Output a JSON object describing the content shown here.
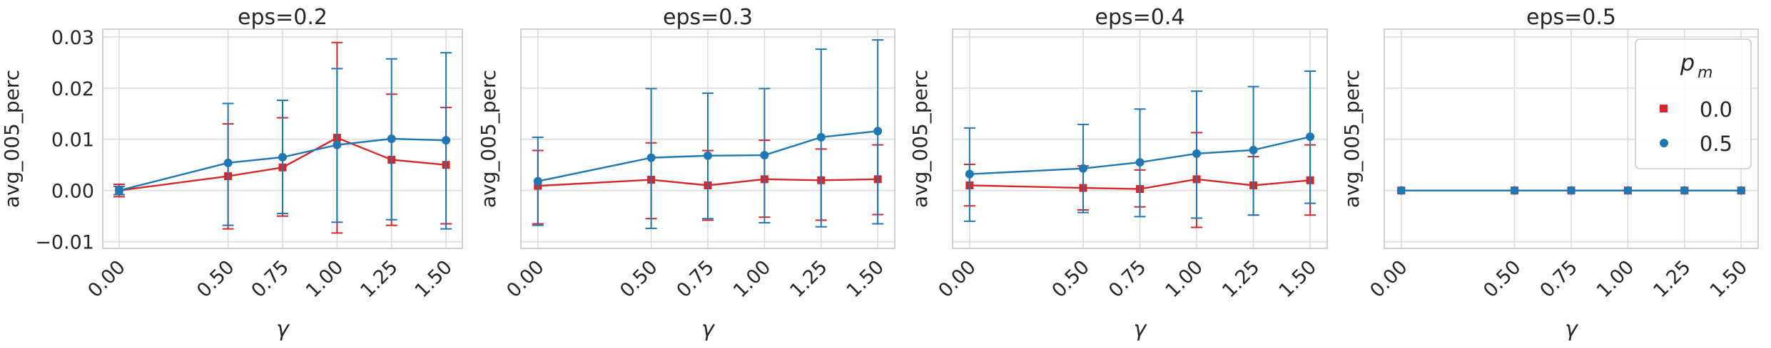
{
  "chart_data": [
    {
      "type": "line",
      "title": "eps=0.2",
      "xlabel": "γ",
      "ylabel": "avg_005_perc",
      "x": [
        0.0,
        0.5,
        0.75,
        1.0,
        1.25,
        1.5
      ],
      "x_ticks": [
        "0.00",
        "0.50",
        "0.75",
        "1.00",
        "1.25",
        "1.50"
      ],
      "y_ticks": [
        "−0.01",
        "0.00",
        "0.01",
        "0.02",
        "0.03"
      ],
      "y_tick_values": [
        -0.01,
        0.0,
        0.01,
        0.02,
        0.03
      ],
      "ylim": [
        -0.0113,
        0.0315
      ],
      "grid": true,
      "series": [
        {
          "p_m": "0.0",
          "color": "#d62728",
          "marker": "square",
          "values": [
            0.0,
            0.0028,
            0.0045,
            0.0103,
            0.006,
            0.005
          ],
          "err_low": [
            -0.0012,
            -0.0075,
            -0.005,
            -0.0083,
            -0.0068,
            -0.0065
          ],
          "err_high": [
            0.0012,
            0.013,
            0.0142,
            0.0289,
            0.0188,
            0.0162
          ]
        },
        {
          "p_m": "0.5",
          "color": "#1f77b4",
          "marker": "circle",
          "values": [
            0.0,
            0.0054,
            0.0065,
            0.0089,
            0.0101,
            0.0098
          ],
          "err_low": [
            -0.0008,
            -0.0068,
            -0.0045,
            -0.0062,
            -0.0057,
            -0.0075
          ],
          "err_high": [
            0.0008,
            0.017,
            0.0176,
            0.0238,
            0.0257,
            0.0269
          ]
        }
      ]
    },
    {
      "type": "line",
      "title": "eps=0.3",
      "xlabel": "γ",
      "ylabel": "avg_005_perc",
      "x": [
        0.0,
        0.5,
        0.75,
        1.0,
        1.25,
        1.5
      ],
      "x_ticks": [
        "0.00",
        "0.50",
        "0.75",
        "1.00",
        "1.25",
        "1.50"
      ],
      "y_tick_values": [
        -0.01,
        0.0,
        0.01,
        0.02,
        0.03
      ],
      "ylim": [
        -0.0113,
        0.0315
      ],
      "grid": true,
      "series": [
        {
          "p_m": "0.0",
          "color": "#d62728",
          "marker": "square",
          "values": [
            0.0009,
            0.0021,
            0.001,
            0.0022,
            0.002,
            0.0022
          ],
          "err_low": [
            -0.0065,
            -0.0055,
            -0.0058,
            -0.0052,
            -0.0058,
            -0.0047
          ],
          "err_high": [
            0.0078,
            0.0093,
            0.0078,
            0.0098,
            0.0081,
            0.0089
          ]
        },
        {
          "p_m": "0.5",
          "color": "#1f77b4",
          "marker": "circle",
          "values": [
            0.0018,
            0.0064,
            0.0068,
            0.0069,
            0.0104,
            0.0116
          ],
          "err_low": [
            -0.0068,
            -0.0074,
            -0.0055,
            -0.0063,
            -0.0071,
            -0.0065
          ],
          "err_high": [
            0.0104,
            0.0199,
            0.019,
            0.0199,
            0.0276,
            0.0294
          ]
        }
      ]
    },
    {
      "type": "line",
      "title": "eps=0.4",
      "xlabel": "γ",
      "ylabel": "avg_005_perc",
      "x": [
        0.0,
        0.5,
        0.75,
        1.0,
        1.25,
        1.5
      ],
      "x_ticks": [
        "0.00",
        "0.50",
        "0.75",
        "1.00",
        "1.25",
        "1.50"
      ],
      "y_tick_values": [
        -0.01,
        0.0,
        0.01,
        0.02,
        0.03
      ],
      "ylim": [
        -0.0113,
        0.0315
      ],
      "grid": true,
      "series": [
        {
          "p_m": "0.0",
          "color": "#d62728",
          "marker": "square",
          "values": [
            0.001,
            0.0005,
            0.0003,
            0.0022,
            0.001,
            0.002
          ],
          "err_low": [
            -0.003,
            -0.0038,
            -0.0032,
            -0.0072,
            -0.0048,
            -0.0048
          ],
          "err_high": [
            0.0051,
            0.0048,
            0.004,
            0.0113,
            0.0066,
            0.0089
          ]
        },
        {
          "p_m": "0.5",
          "color": "#1f77b4",
          "marker": "circle",
          "values": [
            0.0032,
            0.0043,
            0.0055,
            0.0072,
            0.0079,
            0.0105
          ],
          "err_low": [
            -0.006,
            -0.0043,
            -0.0051,
            -0.0054,
            -0.0048,
            -0.0025
          ],
          "err_high": [
            0.0122,
            0.0129,
            0.0159,
            0.0194,
            0.0203,
            0.0233
          ]
        }
      ]
    },
    {
      "type": "line",
      "title": "eps=0.5",
      "xlabel": "γ",
      "ylabel": "avg_005_perc",
      "x": [
        0.0,
        0.5,
        0.75,
        1.0,
        1.25,
        1.5
      ],
      "x_ticks": [
        "0.00",
        "0.50",
        "0.75",
        "1.00",
        "1.25",
        "1.50"
      ],
      "y_tick_values": [
        -0.01,
        0.0,
        0.01,
        0.02,
        0.03
      ],
      "ylim": [
        -0.0113,
        0.0315
      ],
      "grid": true,
      "legend": {
        "title": "p_m",
        "title_base": "p",
        "title_sub": "m",
        "placement": "top-right",
        "entries": [
          {
            "label": "0.0",
            "color": "#d62728",
            "marker": "square"
          },
          {
            "label": "0.5",
            "color": "#1f77b4",
            "marker": "circle"
          }
        ]
      },
      "series": [
        {
          "p_m": "0.0",
          "color": "#d62728",
          "marker": "square",
          "values": [
            0.0,
            0.0,
            0.0,
            0.0,
            0.0,
            0.0
          ],
          "err_low": [
            0.0,
            0.0,
            0.0,
            0.0,
            0.0,
            0.0
          ],
          "err_high": [
            0.0,
            0.0,
            0.0,
            0.0,
            0.0,
            0.0
          ]
        },
        {
          "p_m": "0.5",
          "color": "#1f77b4",
          "marker": "circle",
          "values": [
            0.0,
            0.0,
            0.0,
            0.0,
            0.0,
            0.0
          ],
          "err_low": [
            0.0,
            0.0,
            0.0,
            0.0,
            0.0,
            0.0
          ],
          "err_high": [
            0.0,
            0.0,
            0.0,
            0.0,
            0.0,
            0.0
          ]
        }
      ]
    }
  ]
}
